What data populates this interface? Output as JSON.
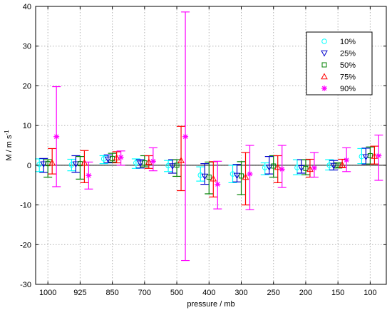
{
  "chart_data": {
    "type": "scatter",
    "xlabel": "pressure / mb",
    "ylabel": "M / m s",
    "ylabel_sup": "-1",
    "categories": [
      "1000",
      "925",
      "850",
      "700",
      "500",
      "400",
      "300",
      "250",
      "200",
      "150",
      "100"
    ],
    "ylim": [
      -30,
      40
    ],
    "yticks": [
      -30,
      -20,
      -10,
      0,
      10,
      20,
      30,
      40
    ],
    "grid": true,
    "legend_position": "top-right",
    "series": [
      {
        "name": "10%",
        "marker": "circle",
        "color": "#00ffff",
        "values": [
          0.2,
          0.1,
          1.6,
          0.6,
          -0.1,
          -2.5,
          -2.2,
          -0.6,
          -0.6,
          0.0,
          2.2
        ],
        "low": [
          -1.6,
          -1.4,
          0.4,
          -0.8,
          -1.6,
          -4.0,
          -4.4,
          -2.4,
          -2.4,
          -1.2,
          0.4
        ],
        "high": [
          1.6,
          1.5,
          2.4,
          1.6,
          1.2,
          -0.4,
          0.0,
          0.6,
          1.4,
          1.4,
          4.2
        ]
      },
      {
        "name": "25%",
        "marker": "triangle-down",
        "color": "#0000cc",
        "values": [
          0.3,
          0.3,
          1.5,
          0.5,
          -0.2,
          -2.8,
          -2.6,
          -0.5,
          -0.7,
          -0.1,
          2.1
        ],
        "low": [
          -1.8,
          -1.8,
          0.6,
          -0.7,
          -2.0,
          -4.8,
          -4.2,
          -2.2,
          -2.0,
          -1.2,
          0.3
        ],
        "high": [
          1.7,
          2.4,
          2.6,
          1.4,
          1.4,
          0.4,
          0.2,
          2.2,
          1.4,
          1.2,
          4.3
        ]
      },
      {
        "name": "50%",
        "marker": "square",
        "color": "#008000",
        "values": [
          0.4,
          0.4,
          1.7,
          0.6,
          0.0,
          -3.0,
          -2.7,
          -0.2,
          -0.8,
          0.0,
          2.4
        ],
        "low": [
          -3.0,
          -3.5,
          0.8,
          -0.4,
          -2.8,
          -7.2,
          -7.4,
          -3.0,
          -2.4,
          -0.7,
          0.3
        ],
        "high": [
          1.4,
          2.2,
          3.0,
          2.4,
          1.4,
          0.8,
          0.9,
          2.4,
          1.4,
          0.6,
          4.6
        ]
      },
      {
        "name": "75%",
        "marker": "triangle-up",
        "color": "#ff0000",
        "values": [
          0.6,
          0.6,
          1.9,
          0.8,
          1.2,
          -3.4,
          -3.0,
          -0.5,
          -1.0,
          0.1,
          2.3
        ],
        "low": [
          -2.2,
          -4.4,
          0.6,
          -0.8,
          -6.4,
          -8.0,
          -10.0,
          -4.4,
          -3.0,
          -0.6,
          0.3
        ],
        "high": [
          4.2,
          3.7,
          3.4,
          2.4,
          9.8,
          0.9,
          3.2,
          2.4,
          1.5,
          1.5,
          4.8
        ]
      },
      {
        "name": "90%",
        "marker": "star",
        "color": "#ff00ff",
        "values": [
          7.2,
          -2.6,
          2.0,
          1.0,
          7.2,
          -4.8,
          -2.2,
          -1.0,
          -0.7,
          1.3,
          2.4
        ],
        "low": [
          -5.4,
          -6.0,
          0.0,
          -1.4,
          -24.0,
          -11.0,
          -11.2,
          -5.6,
          -3.0,
          -1.6,
          -3.8
        ],
        "high": [
          19.8,
          0.8,
          3.6,
          4.4,
          38.6,
          1.0,
          5.0,
          5.0,
          3.2,
          4.4,
          7.6
        ]
      }
    ]
  }
}
